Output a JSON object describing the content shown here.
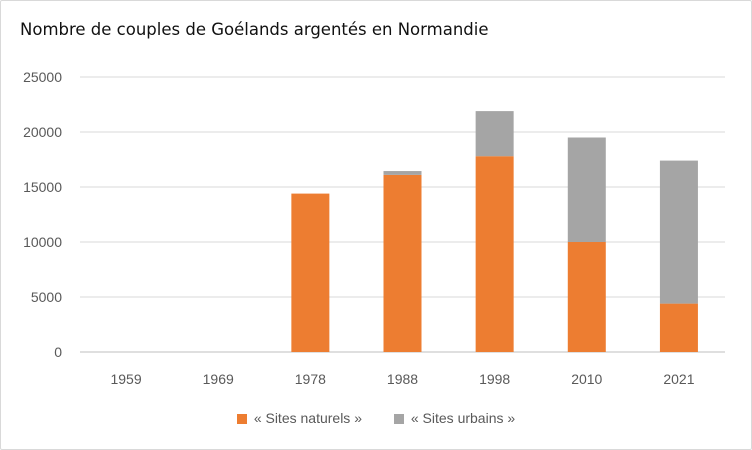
{
  "chart_data": {
    "type": "bar",
    "stacked": true,
    "title": "Nombre de couples de Goélands argentés en Normandie",
    "xlabel": "",
    "ylabel": "",
    "categories": [
      "1959",
      "1969",
      "1978",
      "1988",
      "1998",
      "2010",
      "2021"
    ],
    "series": [
      {
        "name": "« Sites naturels »",
        "color": "#ed7d31",
        "values": [
          0,
          0,
          14400,
          16100,
          17800,
          10000,
          4400
        ]
      },
      {
        "name": "« Sites urbains »",
        "color": "#a5a5a5",
        "values": [
          0,
          0,
          0,
          350,
          4100,
          9500,
          13000
        ]
      }
    ],
    "ylim": [
      0,
      25000
    ],
    "yticks": [
      0,
      5000,
      10000,
      15000,
      20000,
      25000
    ],
    "grid": true,
    "legend": "bottom"
  }
}
